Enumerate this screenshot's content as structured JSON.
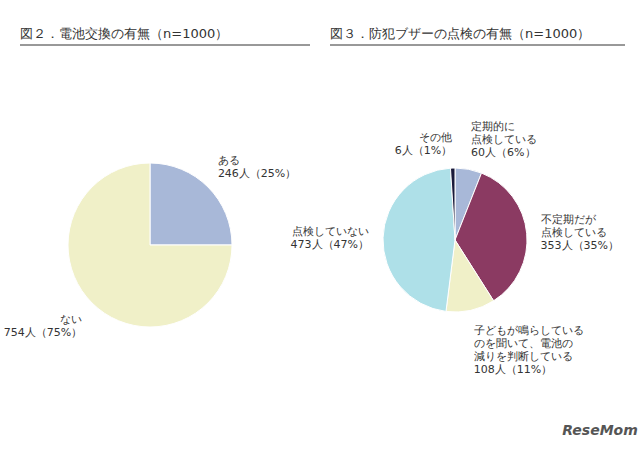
{
  "chart_data": [
    {
      "type": "pie",
      "title": "図２．電池交換の有無（n=1000）",
      "categories": [
        "ある",
        "ない"
      ],
      "values": [
        25,
        75
      ],
      "value_labels": [
        "246人（25%）",
        "754人（75%）"
      ],
      "colors": [
        "#a8b8d8",
        "#f0f0c8"
      ],
      "data_labels": true
    },
    {
      "type": "pie",
      "title": "図３．防犯ブザーの点検の有無（n=1000）",
      "categories": [
        "定期的に\n点検している",
        "不定期だが\n点検している",
        "子どもが鳴らしている\nのを聞いて、電池の\n減りを判断している",
        "点検していない",
        "その他"
      ],
      "values": [
        6,
        35,
        11,
        47,
        1
      ],
      "value_labels": [
        "60人（6%）",
        "353人（35%）",
        "108人（11%）",
        "473人（47%）",
        "6人（1%）"
      ],
      "colors": [
        "#a8b8d8",
        "#8b3a62",
        "#f0f0c8",
        "#aee0e8",
        "#1a1a3a"
      ],
      "data_labels": true,
      "annotations": [
        "ReseMom"
      ]
    }
  ]
}
